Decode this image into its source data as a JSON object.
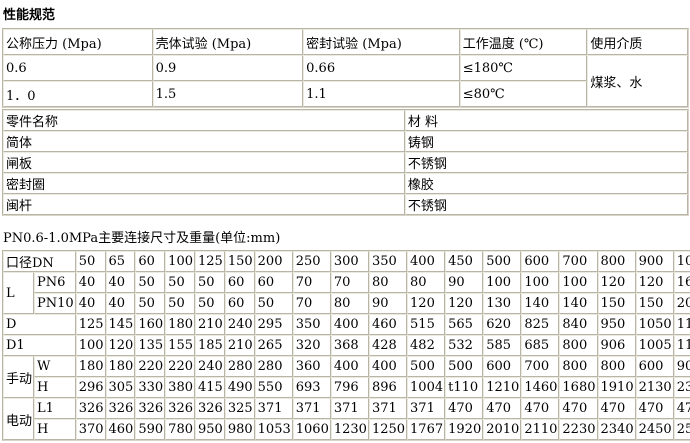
{
  "page": {
    "main_title": "性能规范"
  },
  "spec_table": {
    "headers": [
      "公称压力 (Mpa)",
      "壳体试验 (Mpa)",
      "密封试验 (Mpa)",
      "工作温度 (℃)",
      "使用介质"
    ],
    "rows": [
      [
        "0.6",
        "0.9",
        "0.66",
        "≤180℃"
      ],
      [
        "1．0",
        "1.5",
        "1.1",
        "≤80℃"
      ]
    ],
    "medium": "煤浆、水"
  },
  "material_table": {
    "headers": [
      "零件名称",
      "材 料"
    ],
    "rows": [
      [
        "简体",
        "铸钢"
      ],
      [
        "闸板",
        "不锈钢"
      ],
      [
        "密封圈",
        "橡胶"
      ],
      [
        "闽杆",
        "不锈钢"
      ]
    ]
  },
  "dim_table": {
    "title": "PN0.6-1.0MPa主要连接尺寸及重量(单位:mm)",
    "corner_label": "口径DN",
    "dn_values": [
      "50",
      "65",
      "60",
      "100",
      "125",
      "150",
      "200",
      "250",
      "300",
      "350",
      "400",
      "450",
      "500",
      "600",
      "700",
      "800",
      "900",
      "100"
    ],
    "row_groups": [
      {
        "label": "L",
        "rows": [
          {
            "label": "PN6",
            "values": [
              "40",
              "40",
              "50",
              "50",
              "50",
              "60",
              "60",
              "70",
              "70",
              "80",
              "80",
              "90",
              "100",
              "100",
              "100",
              "120",
              "120",
              "160"
            ]
          },
          {
            "label": "PN10",
            "values": [
              "40",
              "40",
              "50",
              "50",
              "50",
              "60",
              "50",
              "70",
              "80",
              "90",
              "120",
              "120",
              "130",
              "140",
              "140",
              "150",
              "150",
              "200"
            ]
          }
        ]
      },
      {
        "label": null,
        "rows": [
          {
            "label": "D",
            "values": [
              "125",
              "145",
              "160",
              "180",
              "210",
              "240",
              "295",
              "350",
              "400",
              "460",
              "515",
              "565",
              "620",
              "825",
              "840",
              "950",
              "1050",
              "1160"
            ]
          }
        ]
      },
      {
        "label": null,
        "rows": [
          {
            "label": "D1",
            "values": [
              "100",
              "120",
              "135",
              "155",
              "185",
              "210",
              "265",
              "320",
              "368",
              "428",
              "482",
              "532",
              "585",
              "685",
              "800",
              "906",
              "1005",
              "1115"
            ]
          }
        ]
      },
      {
        "label": "手动",
        "rows": [
          {
            "label": "W",
            "values": [
              "180",
              "180",
              "220",
              "220",
              "240",
              "280",
              "280",
              "360",
              "400",
              "400",
              "500",
              "500",
              "600",
              "700",
              "800",
              "800",
              "600",
              "900"
            ]
          },
          {
            "label": "H",
            "values": [
              "296",
              "305",
              "330",
              "380",
              "415",
              "490",
              "550",
              "693",
              "796",
              "896",
              "1004",
              "t110",
              "1210",
              "1460",
              "1680",
              "1910",
              "2130",
              "2380"
            ]
          }
        ]
      },
      {
        "label": "电动",
        "rows": [
          {
            "label": "L1",
            "values": [
              "326",
              "326",
              "326",
              "326",
              "326",
              "325",
              "371",
              "371",
              "371",
              "371",
              "371",
              "470",
              "470",
              "470",
              "470",
              "470",
              "470",
              "470"
            ]
          },
          {
            "label": "H",
            "values": [
              "370",
              "460",
              "590",
              "780",
              "950",
              "980",
              "1053",
              "1060",
              "1230",
              "1250",
              "1767",
              "1920",
              "2010",
              "2110",
              "2230",
              "2340",
              "2450",
              "2560"
            ]
          }
        ]
      }
    ]
  }
}
